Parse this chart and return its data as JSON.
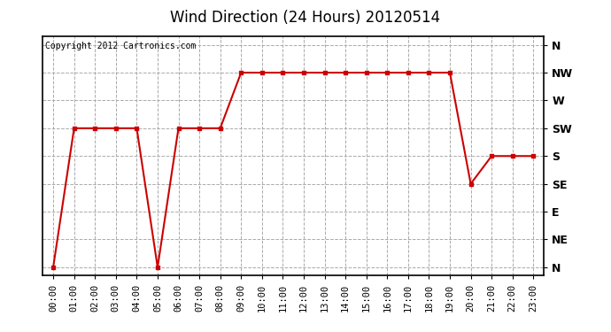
{
  "title": "Wind Direction (24 Hours) 20120514",
  "copyright_text": "Copyright 2012 Cartronics.com",
  "hours": [
    "00:00",
    "01:00",
    "02:00",
    "03:00",
    "04:00",
    "05:00",
    "06:00",
    "07:00",
    "08:00",
    "09:00",
    "10:00",
    "11:00",
    "12:00",
    "13:00",
    "14:00",
    "15:00",
    "16:00",
    "17:00",
    "18:00",
    "19:00",
    "20:00",
    "21:00",
    "22:00",
    "23:00"
  ],
  "wind_values": [
    0,
    5,
    5,
    5,
    5,
    0,
    5,
    5,
    5,
    7,
    7,
    7,
    7,
    7,
    7,
    7,
    7,
    7,
    7,
    7,
    3,
    4,
    4,
    4
  ],
  "ytick_positions": [
    0,
    1,
    2,
    3,
    4,
    5,
    6,
    7,
    8
  ],
  "ytick_labels": [
    "N",
    "NE",
    "E",
    "SE",
    "S",
    "SW",
    "W",
    "NW",
    "N"
  ],
  "line_color": "#cc0000",
  "marker": "s",
  "marker_size": 3,
  "grid_color": "#aaaaaa",
  "grid_style": "--",
  "bg_color": "#ffffff",
  "plot_bg_color": "#ffffff",
  "title_fontsize": 12,
  "copyright_fontsize": 7,
  "tick_fontsize": 7.5,
  "ylabel_fontsize": 9,
  "border_color": "#000000"
}
